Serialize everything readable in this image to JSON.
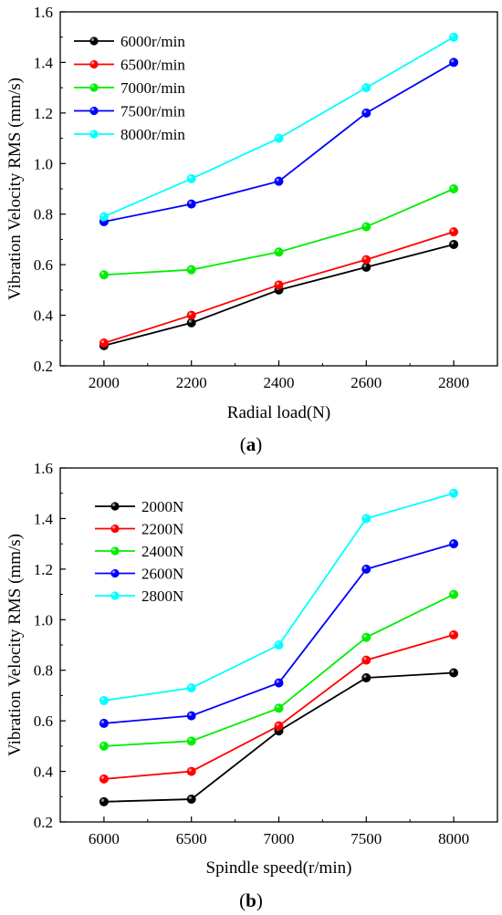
{
  "chart_data": [
    {
      "type": "line",
      "caption_letter": "a",
      "xlabel": "Radial load(N)",
      "ylabel": "Vibration Velocity RMS (mm/s)",
      "x": [
        2000,
        2200,
        2400,
        2600,
        2800
      ],
      "xlim": [
        1900,
        2900
      ],
      "ylim": [
        0.2,
        1.6
      ],
      "yticks": [
        "0.2",
        "0.4",
        "0.6",
        "0.8",
        "1.0",
        "1.2",
        "1.4",
        "1.6"
      ],
      "xticks": [
        "2000",
        "2200",
        "2400",
        "2600",
        "2800"
      ],
      "legend_position": "top-left",
      "series": [
        {
          "name": "6000r/min",
          "color": "#000000",
          "values": [
            0.28,
            0.37,
            0.5,
            0.59,
            0.68
          ]
        },
        {
          "name": "6500r/min",
          "color": "#ff0000",
          "values": [
            0.29,
            0.4,
            0.52,
            0.62,
            0.73
          ]
        },
        {
          "name": "7000r/min",
          "color": "#00ee00",
          "values": [
            0.56,
            0.58,
            0.65,
            0.75,
            0.9
          ]
        },
        {
          "name": "7500r/min",
          "color": "#0000ff",
          "values": [
            0.77,
            0.84,
            0.93,
            1.2,
            1.4
          ]
        },
        {
          "name": "8000r/min",
          "color": "#00ffff",
          "values": [
            0.79,
            0.94,
            1.1,
            1.3,
            1.5
          ]
        }
      ]
    },
    {
      "type": "line",
      "caption_letter": "b",
      "xlabel": "Spindle speed(r/min)",
      "ylabel": "Vibration Velocity RMS (mm/s)",
      "x": [
        6000,
        6500,
        7000,
        7500,
        8000
      ],
      "xlim": [
        5750,
        8250
      ],
      "ylim": [
        0.2,
        1.6
      ],
      "yticks": [
        "0.2",
        "0.4",
        "0.6",
        "0.8",
        "1.0",
        "1.2",
        "1.4",
        "1.6"
      ],
      "xticks": [
        "6000",
        "6500",
        "7000",
        "7500",
        "8000"
      ],
      "legend_position": "top-left",
      "series": [
        {
          "name": "2000N",
          "color": "#000000",
          "values": [
            0.28,
            0.29,
            0.56,
            0.77,
            0.79
          ]
        },
        {
          "name": "2200N",
          "color": "#ff0000",
          "values": [
            0.37,
            0.4,
            0.58,
            0.84,
            0.94
          ]
        },
        {
          "name": "2400N",
          "color": "#00ee00",
          "values": [
            0.5,
            0.52,
            0.65,
            0.93,
            1.1
          ]
        },
        {
          "name": "2600N",
          "color": "#0000ff",
          "values": [
            0.59,
            0.62,
            0.75,
            1.2,
            1.3
          ]
        },
        {
          "name": "2800N",
          "color": "#00ffff",
          "values": [
            0.68,
            0.73,
            0.9,
            1.4,
            1.5
          ]
        }
      ]
    }
  ]
}
